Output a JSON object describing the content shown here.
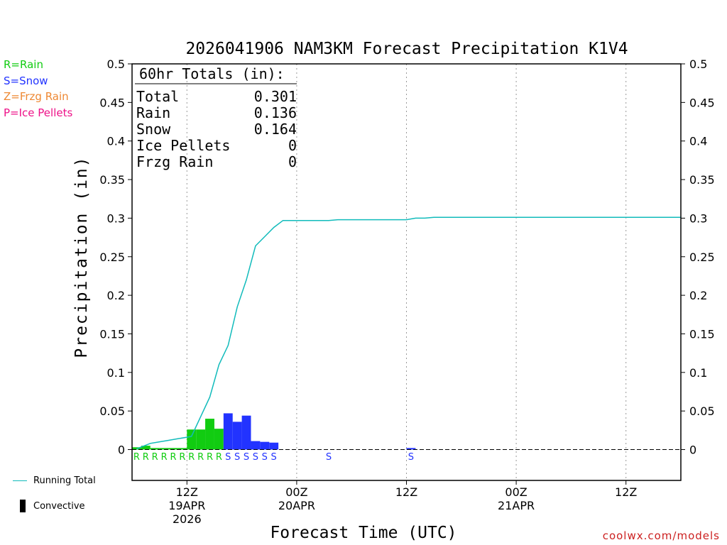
{
  "colors": {
    "rain": "#11cc11",
    "snow": "#2233ff",
    "frzg_rain": "#ee8833",
    "ice_pellets": "#ee1188",
    "running_total": "#11bbbb",
    "convective": "#000000",
    "credit": "#cc2020"
  },
  "legend": {
    "rain": "R=Rain",
    "snow": "S=Snow",
    "frzg_rain": "Z=Frzg Rain",
    "ice_pellets": "P=Ice Pellets",
    "running_total": "Running Total",
    "convective": "Convective"
  },
  "totals": {
    "heading": "60hr Totals (in):",
    "rows": [
      {
        "label": "Total",
        "value": "0.301"
      },
      {
        "label": "Rain",
        "value": "0.136"
      },
      {
        "label": "Snow",
        "value": "0.164"
      },
      {
        "label": "Ice Pellets",
        "value": "0"
      },
      {
        "label": "Frzg Rain",
        "value": "0"
      }
    ]
  },
  "credit": "coolwx.com/models",
  "chart_data": {
    "type": "bar",
    "title": "2026041906 NAM3KM Forecast Precipitation K1V4",
    "xlabel": "Forecast Time (UTC)",
    "ylabel": "Precipitation (in)",
    "ylim": [
      -0.04,
      0.5
    ],
    "xlim_hours": [
      0,
      60
    ],
    "grid": "vertical dotted at 12Z/00Z",
    "y_ticks": [
      {
        "v": 0.5,
        "label": "0.5"
      },
      {
        "v": 0.45,
        "label": "0.45"
      },
      {
        "v": 0.4,
        "label": "0.4"
      },
      {
        "v": 0.35,
        "label": "0.35"
      },
      {
        "v": 0.3,
        "label": "0.3"
      },
      {
        "v": 0.25,
        "label": "0.25"
      },
      {
        "v": 0.2,
        "label": "0.2"
      },
      {
        "v": 0.15,
        "label": "0.15"
      },
      {
        "v": 0.1,
        "label": "0.1"
      },
      {
        "v": 0.05,
        "label": "0.05"
      },
      {
        "v": 0,
        "label": "0"
      }
    ],
    "x_ticks": [
      {
        "hour": 6,
        "lines": [
          "12Z",
          "19APR",
          "2026"
        ]
      },
      {
        "hour": 18,
        "lines": [
          "00Z",
          "20APR"
        ]
      },
      {
        "hour": 30,
        "lines": [
          "12Z"
        ]
      },
      {
        "hour": 42,
        "lines": [
          "00Z",
          "21APR"
        ]
      },
      {
        "hour": 54,
        "lines": [
          "12Z"
        ]
      }
    ],
    "bars": [
      {
        "hour": 1,
        "value": 0.003,
        "type": "R"
      },
      {
        "hour": 2,
        "value": 0.005,
        "type": "R"
      },
      {
        "hour": 3,
        "value": 0.002,
        "type": "R"
      },
      {
        "hour": 4,
        "value": 0.002,
        "type": "R"
      },
      {
        "hour": 5,
        "value": 0.002,
        "type": "R"
      },
      {
        "hour": 6,
        "value": 0.002,
        "type": "R"
      },
      {
        "hour": 7,
        "value": 0.026,
        "type": "R"
      },
      {
        "hour": 8,
        "value": 0.026,
        "type": "R"
      },
      {
        "hour": 9,
        "value": 0.04,
        "type": "R"
      },
      {
        "hour": 10,
        "value": 0.027,
        "type": "R"
      },
      {
        "hour": 11,
        "value": 0.047,
        "type": "S"
      },
      {
        "hour": 12,
        "value": 0.036,
        "type": "S"
      },
      {
        "hour": 13,
        "value": 0.044,
        "type": "S"
      },
      {
        "hour": 14,
        "value": 0.011,
        "type": "S"
      },
      {
        "hour": 15,
        "value": 0.01,
        "type": "S"
      },
      {
        "hour": 16,
        "value": 0.009,
        "type": "S"
      },
      {
        "hour": 22,
        "value": 0.0,
        "type": "S"
      },
      {
        "hour": 31,
        "value": 0.002,
        "type": "S"
      }
    ],
    "running_total": [
      {
        "hour": 0.5,
        "value": 0.001
      },
      {
        "hour": 2,
        "value": 0.008
      },
      {
        "hour": 3,
        "value": 0.01
      },
      {
        "hour": 4,
        "value": 0.012
      },
      {
        "hour": 5,
        "value": 0.014
      },
      {
        "hour": 6,
        "value": 0.016
      },
      {
        "hour": 6.5,
        "value": 0.017
      },
      {
        "hour": 8.5,
        "value": 0.068
      },
      {
        "hour": 9.5,
        "value": 0.11
      },
      {
        "hour": 10.5,
        "value": 0.135
      },
      {
        "hour": 11.5,
        "value": 0.185
      },
      {
        "hour": 12.5,
        "value": 0.22
      },
      {
        "hour": 13.5,
        "value": 0.264
      },
      {
        "hour": 14.5,
        "value": 0.276
      },
      {
        "hour": 15.5,
        "value": 0.288
      },
      {
        "hour": 16.5,
        "value": 0.297
      },
      {
        "hour": 21.5,
        "value": 0.297
      },
      {
        "hour": 22.5,
        "value": 0.298
      },
      {
        "hour": 30,
        "value": 0.298
      },
      {
        "hour": 31,
        "value": 0.3
      },
      {
        "hour": 32,
        "value": 0.3
      },
      {
        "hour": 33,
        "value": 0.301
      },
      {
        "hour": 60,
        "value": 0.301
      }
    ]
  }
}
